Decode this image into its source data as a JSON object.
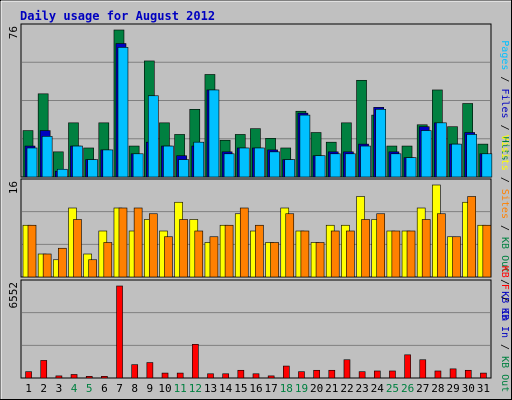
{
  "chart_data": {
    "type": "bar",
    "title": "Daily usage for August 2012",
    "categories": [
      "1",
      "2",
      "3",
      "4",
      "5",
      "6",
      "7",
      "8",
      "9",
      "10",
      "11",
      "12",
      "13",
      "14",
      "15",
      "16",
      "17",
      "18",
      "19",
      "20",
      "21",
      "22",
      "23",
      "24",
      "25",
      "26",
      "27",
      "28",
      "29",
      "30",
      "31"
    ],
    "weekend_days": [
      "4",
      "5",
      "11",
      "12",
      "18",
      "19",
      "25",
      "26"
    ],
    "panels": [
      {
        "id": "top",
        "max_label": "76",
        "ylim": [
          0,
          76
        ],
        "right_label": [
          {
            "text": "Pages",
            "color": "#00c0ff"
          },
          {
            "text": " / ",
            "color": "#000000"
          },
          {
            "text": "Files",
            "color": "#0000c0"
          },
          {
            "text": " / ",
            "color": "#000000"
          },
          {
            "text": "Hits",
            "color": "#008040"
          }
        ],
        "series": [
          {
            "name": "Hits",
            "color": "#008040",
            "values": [
              24,
              43,
              13,
              28,
              15,
              28,
              76,
              16,
              60,
              28,
              22,
              35,
              53,
              19,
              22,
              25,
              20,
              15,
              34,
              23,
              18,
              28,
              50,
              32,
              16,
              16,
              27,
              45,
              26,
              38,
              17
            ]
          },
          {
            "name": "Files",
            "color": "#0000c0",
            "values": [
              16,
              24,
              3,
              16,
              9,
              14,
              69,
              12,
              18,
              16,
              11,
              16,
              45,
              13,
              15,
              15,
              14,
              9,
              33,
              11,
              13,
              13,
              17,
              36,
              13,
              10,
              26,
              28,
              17,
              23,
              12
            ]
          },
          {
            "name": "Pages",
            "color": "#00c0ff",
            "values": [
              15,
              21,
              4,
              16,
              9,
              14,
              67,
              12,
              42,
              16,
              9,
              18,
              45,
              12,
              15,
              15,
              13,
              9,
              32,
              11,
              12,
              12,
              16,
              35,
              12,
              10,
              24,
              28,
              17,
              22,
              12
            ]
          }
        ]
      },
      {
        "id": "middle",
        "max_label": "16",
        "ylim": [
          0,
          16
        ],
        "right_label": [
          {
            "text": "Visits",
            "color": "#ffff00"
          },
          {
            "text": " / ",
            "color": "#000000"
          },
          {
            "text": "Sites",
            "color": "#ff8000"
          },
          {
            "text": " / ",
            "color": "#000000"
          },
          {
            "text": "KB Out",
            "color": "#008040"
          },
          {
            "text": " / ",
            "color": "#000000"
          },
          {
            "text": "KB In",
            "color": "#0000c0"
          }
        ],
        "series": [
          {
            "name": "Visits",
            "color": "#ffff00",
            "values": [
              9,
              4,
              3,
              12,
              4,
              8,
              12,
              8,
              10,
              8,
              13,
              10,
              6,
              9,
              11,
              8,
              6,
              12,
              8,
              6,
              9,
              9,
              14,
              10,
              8,
              8,
              12,
              16,
              7,
              13,
              9
            ]
          },
          {
            "name": "Sites",
            "color": "#ff8000",
            "values": [
              9,
              4,
              5,
              10,
              3,
              6,
              12,
              12,
              11,
              7,
              10,
              8,
              7,
              9,
              12,
              9,
              6,
              11,
              8,
              6,
              8,
              8,
              10,
              11,
              8,
              8,
              10,
              11,
              7,
              14,
              9
            ]
          }
        ]
      },
      {
        "id": "bottom",
        "max_label": "6552",
        "ylim": [
          0,
          6552
        ],
        "right_label": [
          {
            "text": "KB F",
            "color": "#ff0000"
          },
          {
            "text": " / ",
            "color": "#000000"
          },
          {
            "text": "KB In",
            "color": "#0000c0"
          },
          {
            "text": " / ",
            "color": "#000000"
          },
          {
            "text": "KB Out",
            "color": "#008040"
          }
        ],
        "series": [
          {
            "name": "KB F",
            "color": "#ff0000",
            "values": [
              450,
              1250,
              150,
              250,
              120,
              120,
              6552,
              950,
              1100,
              350,
              350,
              2400,
              300,
              300,
              550,
              300,
              150,
              850,
              450,
              550,
              550,
              1300,
              450,
              500,
              500,
              1650,
              1300,
              500,
              650,
              550,
              350
            ]
          }
        ]
      }
    ]
  }
}
